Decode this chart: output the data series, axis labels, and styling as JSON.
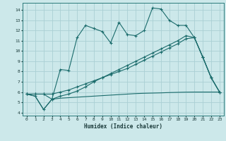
{
  "title": "",
  "xlabel": "Humidex (Indice chaleur)",
  "bg_color": "#cce8ea",
  "grid_color": "#aad0d4",
  "line_color": "#1a6b6b",
  "xlim": [
    -0.5,
    23.5
  ],
  "ylim": [
    3.7,
    14.7
  ],
  "xticks": [
    0,
    1,
    2,
    3,
    4,
    5,
    6,
    7,
    8,
    9,
    10,
    11,
    12,
    13,
    14,
    15,
    16,
    17,
    18,
    19,
    20,
    21,
    22,
    23
  ],
  "yticks": [
    4,
    5,
    6,
    7,
    8,
    9,
    10,
    11,
    12,
    13,
    14
  ],
  "line1_x": [
    0,
    1,
    2,
    3,
    4,
    5,
    6,
    7,
    8,
    9,
    10,
    11,
    12,
    13,
    14,
    15,
    16,
    17,
    18,
    19,
    20,
    21,
    22,
    23
  ],
  "line1_y": [
    5.8,
    5.6,
    4.3,
    5.3,
    8.2,
    8.1,
    11.3,
    12.5,
    12.2,
    11.9,
    10.8,
    12.8,
    11.6,
    11.5,
    12.0,
    14.2,
    14.1,
    13.0,
    12.5,
    12.5,
    11.3,
    9.4,
    7.4,
    6.0
  ],
  "line2_x": [
    0,
    1,
    2,
    3,
    4,
    5,
    6,
    7,
    8,
    9,
    10,
    11,
    12,
    13,
    14,
    15,
    16,
    17,
    18,
    19,
    20,
    21,
    22,
    23
  ],
  "line2_y": [
    5.8,
    5.8,
    5.8,
    5.8,
    6.0,
    6.2,
    6.5,
    6.8,
    7.1,
    7.4,
    7.7,
    8.0,
    8.3,
    8.7,
    9.1,
    9.5,
    9.9,
    10.3,
    10.7,
    11.2,
    11.3,
    9.4,
    7.4,
    6.0
  ],
  "line3_x": [
    0,
    1,
    2,
    3,
    4,
    5,
    6,
    7,
    8,
    9,
    10,
    11,
    12,
    13,
    14,
    15,
    16,
    17,
    18,
    19,
    20,
    21,
    22,
    23
  ],
  "line3_y": [
    5.8,
    5.6,
    4.3,
    5.3,
    5.4,
    5.45,
    5.5,
    5.55,
    5.6,
    5.65,
    5.7,
    5.75,
    5.8,
    5.85,
    5.88,
    5.9,
    5.92,
    5.95,
    5.97,
    5.99,
    6.0,
    6.0,
    6.0,
    6.0
  ],
  "line4_x": [
    0,
    1,
    2,
    3,
    4,
    5,
    6,
    7,
    8,
    9,
    10,
    11,
    12,
    13,
    14,
    15,
    16,
    17,
    18,
    19,
    20,
    21,
    22,
    23
  ],
  "line4_y": [
    5.8,
    5.8,
    5.8,
    5.3,
    5.6,
    5.8,
    6.1,
    6.5,
    7.0,
    7.4,
    7.8,
    8.2,
    8.6,
    9.0,
    9.4,
    9.8,
    10.2,
    10.6,
    11.0,
    11.5,
    11.3,
    9.4,
    7.4,
    6.0
  ]
}
